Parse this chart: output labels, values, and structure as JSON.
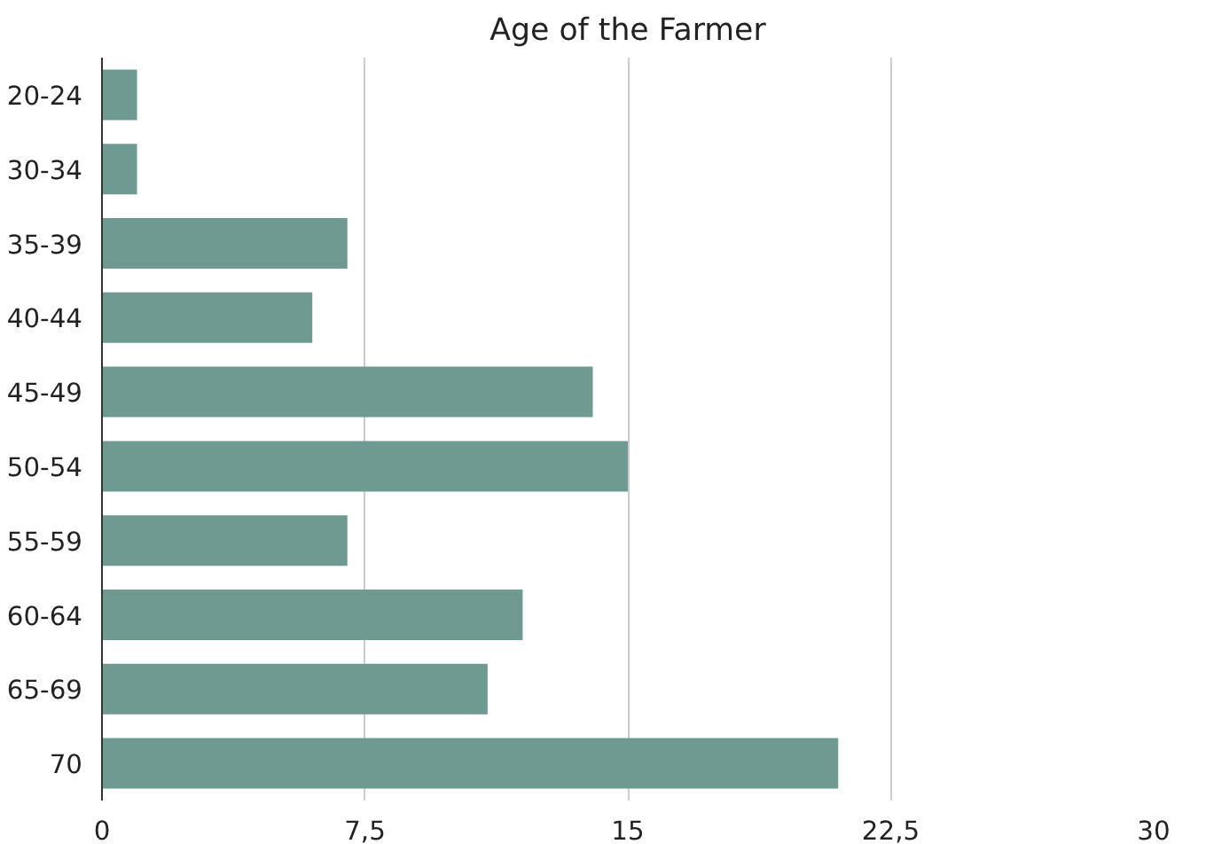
{
  "chart_data": {
    "type": "bar",
    "orientation": "horizontal",
    "title": "Age of the Farmer",
    "categories": [
      "20-24",
      "30-34",
      "35-39",
      "40-44",
      "45-49",
      "50-54",
      "55-59",
      "60-64",
      "65-69",
      "70"
    ],
    "values": [
      1,
      1,
      7,
      6,
      14,
      15,
      7,
      12,
      11,
      21
    ],
    "color": "#6f9a91",
    "xlim": [
      0,
      30
    ],
    "xticks": [
      0,
      {
        "value": 7.5,
        "label": "7,5"
      },
      15,
      {
        "value": 22.5,
        "label": "22,5"
      },
      30
    ],
    "grid": "x"
  }
}
